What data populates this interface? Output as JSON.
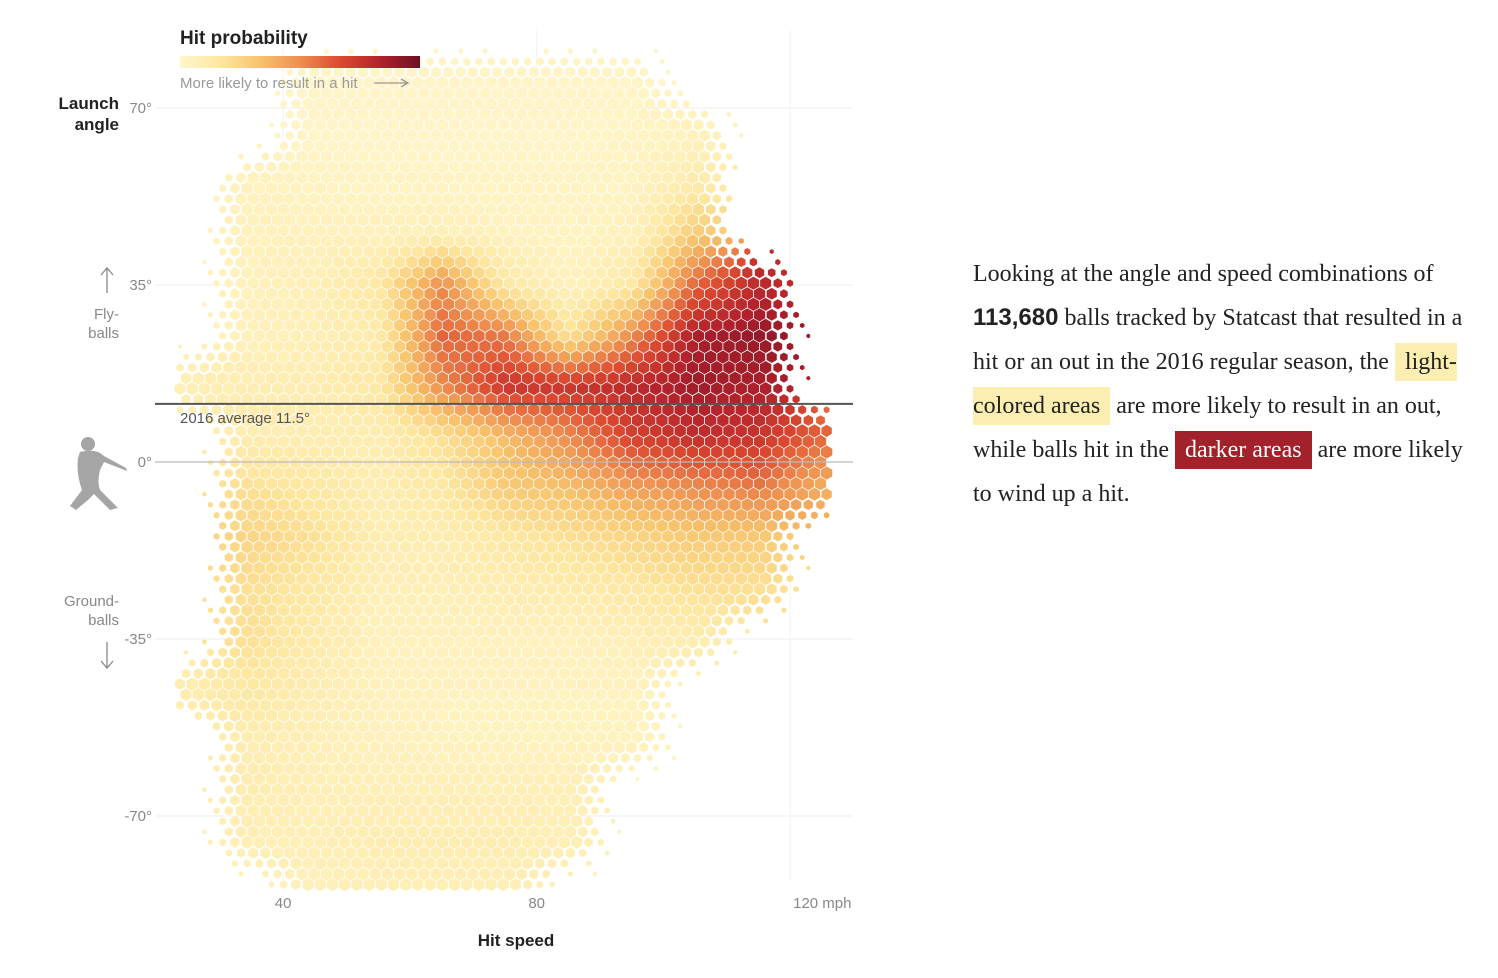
{
  "legend": {
    "title": "Hit probability",
    "caption": "More likely to result in a hit",
    "colors": [
      "#fff6cc",
      "#fde7a0",
      "#f7c36c",
      "#ee8e4f",
      "#dc4a31",
      "#b3222c",
      "#6a0f24"
    ]
  },
  "paragraph": {
    "p1": "Looking at the angle and speed combinations of ",
    "count": "113,680",
    "p2": " balls tracked by Statcast that resulted in a hit or an out in the 2016 regular season, the ",
    "light": "light-colored areas",
    "p3": " are more likely to result in an out, while balls hit in the ",
    "dark": "darker areas",
    "p4": " are more likely to wind up a hit.",
    "light_color": "#fbeeb0",
    "dark_color": "#a3212b"
  },
  "chart_data": {
    "type": "heatmap",
    "subtype": "hexbin",
    "xlabel": "Hit speed",
    "ylabel": "Launch angle",
    "xlim": [
      20,
      130
    ],
    "ylim": [
      -90,
      85
    ],
    "x_ticks": [
      {
        "value": 40,
        "label": "40"
      },
      {
        "value": 80,
        "label": "80"
      },
      {
        "value": 120,
        "label": "120 mph"
      }
    ],
    "y_ticks": [
      {
        "value": 70,
        "label": "70°"
      },
      {
        "value": 35,
        "label": "35°"
      },
      {
        "value": 0,
        "label": "0°"
      },
      {
        "value": -35,
        "label": "-35°"
      },
      {
        "value": -70,
        "label": "-70°"
      }
    ],
    "fly_label": [
      "Fly-",
      "balls"
    ],
    "ground_label": [
      "Ground-",
      "balls"
    ],
    "reference_line": {
      "value": 11.5,
      "label": "2016 average 11.5°"
    },
    "grid": true,
    "value_label": "Hit probability",
    "speed_bins": [
      25,
      35,
      45,
      55,
      65,
      75,
      85,
      95,
      105,
      115,
      125
    ],
    "angle_bins": [
      75,
      65,
      55,
      45,
      35,
      25,
      15,
      5,
      -5,
      -15,
      -25,
      -35,
      -45,
      -55,
      -65,
      -75,
      -85
    ],
    "hit_probability": [
      [
        null,
        null,
        0.02,
        0.02,
        0.02,
        0.02,
        0.02,
        0.02,
        null,
        null,
        null
      ],
      [
        null,
        null,
        0.02,
        0.02,
        0.02,
        0.02,
        0.02,
        0.03,
        0.05,
        null,
        null
      ],
      [
        null,
        0.05,
        0.04,
        0.03,
        0.03,
        0.03,
        0.03,
        0.04,
        0.12,
        null,
        null
      ],
      [
        null,
        0.06,
        0.06,
        0.06,
        0.08,
        0.05,
        0.04,
        0.06,
        0.3,
        null,
        null
      ],
      [
        null,
        0.06,
        0.08,
        0.15,
        0.5,
        0.15,
        0.05,
        0.15,
        0.6,
        0.8,
        null
      ],
      [
        null,
        0.06,
        0.08,
        0.12,
        0.6,
        0.55,
        0.2,
        0.5,
        0.85,
        0.9,
        null
      ],
      [
        0.08,
        0.1,
        0.1,
        0.15,
        0.5,
        0.75,
        0.75,
        0.8,
        0.88,
        0.85,
        null
      ],
      [
        null,
        0.1,
        0.1,
        0.1,
        0.2,
        0.35,
        0.5,
        0.7,
        0.78,
        0.75,
        0.6
      ],
      [
        null,
        0.2,
        0.15,
        0.1,
        0.15,
        0.3,
        0.35,
        0.45,
        0.5,
        0.55,
        0.4
      ],
      [
        null,
        0.25,
        0.2,
        0.1,
        0.1,
        0.15,
        0.2,
        0.25,
        0.3,
        0.3,
        null
      ],
      [
        null,
        0.2,
        0.15,
        0.08,
        0.08,
        0.1,
        0.12,
        0.15,
        0.2,
        0.2,
        null
      ],
      [
        null,
        0.2,
        0.12,
        0.06,
        0.06,
        0.06,
        0.06,
        0.08,
        0.1,
        null,
        null
      ],
      [
        0.1,
        0.15,
        0.1,
        0.06,
        0.05,
        0.05,
        0.05,
        0.05,
        null,
        null,
        null
      ],
      [
        null,
        0.1,
        0.08,
        0.06,
        0.05,
        0.05,
        0.05,
        0.05,
        null,
        null,
        null
      ],
      [
        null,
        0.1,
        0.08,
        0.08,
        0.08,
        0.08,
        0.08,
        null,
        null,
        null,
        null
      ],
      [
        null,
        0.08,
        0.08,
        0.1,
        0.1,
        0.1,
        0.08,
        null,
        null,
        null,
        null
      ],
      [
        null,
        null,
        0.06,
        0.08,
        0.08,
        0.08,
        null,
        null,
        null,
        null,
        null
      ]
    ]
  }
}
